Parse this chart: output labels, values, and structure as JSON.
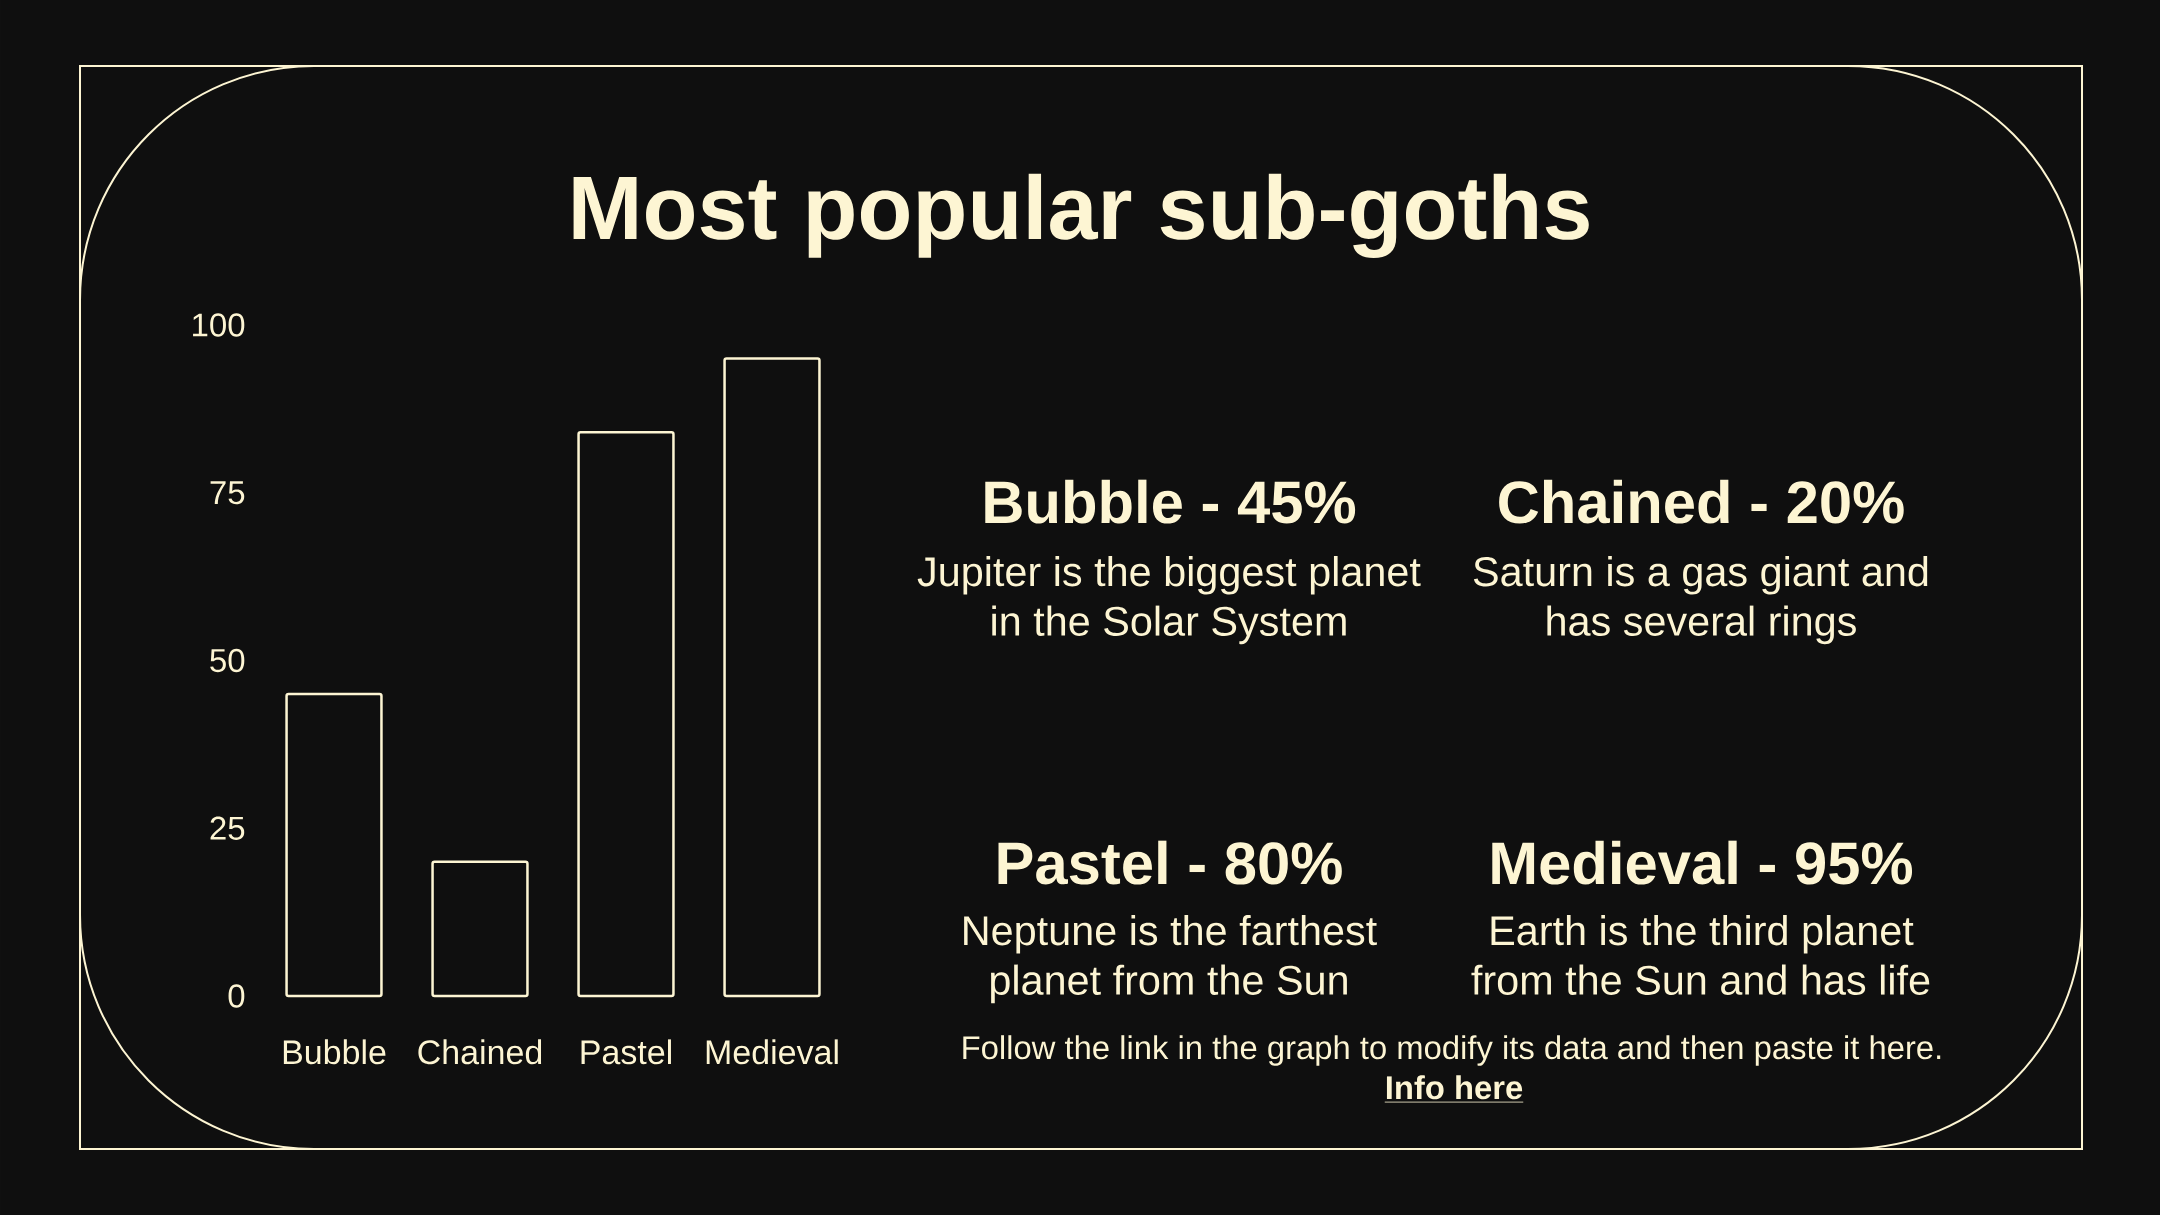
{
  "chart_data": {
    "type": "bar",
    "title": "Most popular sub-goths",
    "categories": [
      "Bubble",
      "Chained",
      "Pastel",
      "Medieval"
    ],
    "values": [
      45,
      20,
      84,
      95
    ],
    "color": "#fdf5d3",
    "ylim": [
      0,
      100
    ],
    "yticks": [
      0,
      25,
      50,
      75,
      100
    ],
    "annotations": [
      "Bubble - 45%",
      "Jupiter is the biggest planet in the Solar System",
      "Chained - 20%",
      "Saturn is a gas giant and has several rings",
      "Pastel - 80%",
      "Neptune is the farthest planet from the Sun",
      "Medieval - 95%",
      "Earth is the third planet from the Sun and has life",
      "Follow the link in the graph to modify its data and then paste it here.",
      "Info here"
    ]
  }
}
